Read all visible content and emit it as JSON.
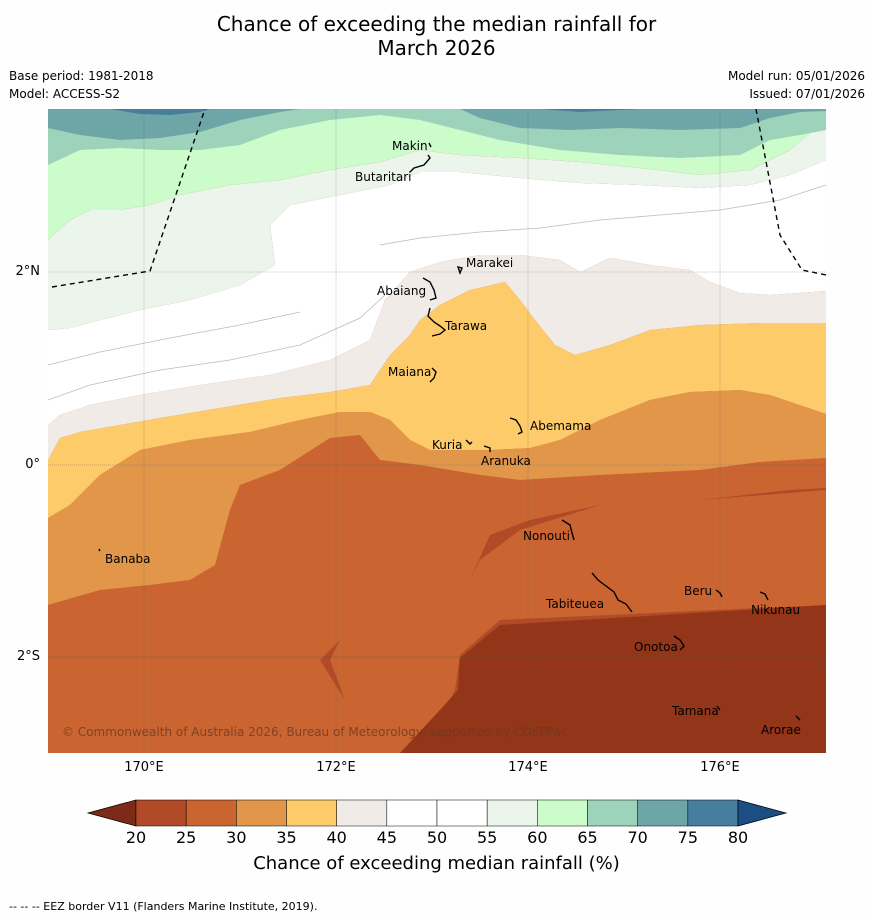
{
  "title_line1": "Chance of exceeding the median rainfall for",
  "title_line2": "March 2026",
  "base_period": "Base period: 1981-2018",
  "model": "Model: ACCESS-S2",
  "model_run": "Model run: 05/01/2026",
  "issued": "Issued: 07/01/2026",
  "copyright": "© Commonwealth of Australia 2026, Bureau of Meteorology, supported by COSPPac",
  "colorbar_label": "Chance of exceeding median rainfall (%)",
  "footer": "--  --  -- EEZ border V11 (Flanders Marine Institute, 2019).",
  "axes": {
    "lat_labels": [
      "2°N",
      "0°",
      "2°S"
    ],
    "lon_labels": [
      "170°E",
      "172°E",
      "174°E",
      "176°E"
    ]
  },
  "colorbar": {
    "ticks": [
      "20",
      "25",
      "30",
      "35",
      "40",
      "45",
      "50",
      "55",
      "60",
      "65",
      "70",
      "75",
      "80"
    ],
    "colors": [
      "#7e2a18",
      "#b04a27",
      "#ca6532",
      "#e1964a",
      "#fecb6a",
      "#f0ebe6",
      "#ffffff",
      "#ffffff",
      "#ecf5ec",
      "#cbfcca",
      "#9dd2bb",
      "#6ea6a7",
      "#457f9d",
      "#1b4f83"
    ]
  },
  "places": [
    {
      "name": "Makin"
    },
    {
      "name": "Butaritari"
    },
    {
      "name": "Marakei"
    },
    {
      "name": "Abaiang"
    },
    {
      "name": "Tarawa"
    },
    {
      "name": "Maiana"
    },
    {
      "name": "Abemama"
    },
    {
      "name": "Kuria"
    },
    {
      "name": "Aranuka"
    },
    {
      "name": "Banaba"
    },
    {
      "name": "Nonouti"
    },
    {
      "name": "Beru"
    },
    {
      "name": "Nikunau"
    },
    {
      "name": "Tabiteuea"
    },
    {
      "name": "Onotoa"
    },
    {
      "name": "Tamana"
    },
    {
      "name": "Arorae"
    }
  ]
}
